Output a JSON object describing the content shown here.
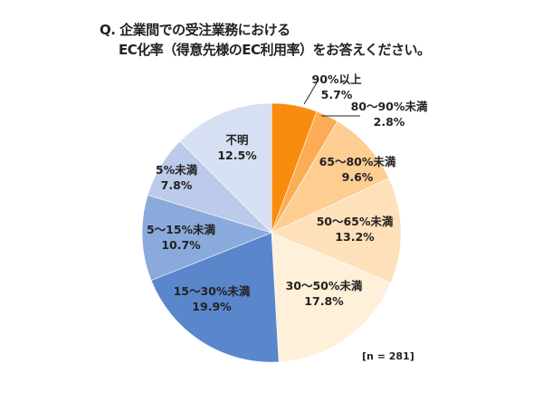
{
  "chart_data": {
    "type": "pie",
    "title_line1": "Q. 企業間での受注業務における",
    "title_line2": "EC化率（得意先様のEC利用率）をお答えください。",
    "note": "[n = 281]",
    "slices": [
      {
        "label": "90%以上",
        "value": 5.7,
        "value_label": "5.7%",
        "color": "#f98c0f"
      },
      {
        "label": "80～90%未満",
        "value": 2.8,
        "value_label": "2.8%",
        "color": "#fbac55"
      },
      {
        "label": "65～80%未満",
        "value": 9.6,
        "value_label": "9.6%",
        "color": "#fdcd92"
      },
      {
        "label": "50～65%未満",
        "value": 13.2,
        "value_label": "13.2%",
        "color": "#fee0ba"
      },
      {
        "label": "30～50%未満",
        "value": 17.8,
        "value_label": "17.8%",
        "color": "#fff0da"
      },
      {
        "label": "15～30%未満",
        "value": 19.9,
        "value_label": "19.9%",
        "color": "#5a86cc"
      },
      {
        "label": "5～15%未満",
        "value": 10.7,
        "value_label": "10.7%",
        "color": "#8aaadc"
      },
      {
        "label": "5%未満",
        "value": 7.8,
        "value_label": "7.8%",
        "color": "#bccbe9"
      },
      {
        "label": "不明",
        "value": 12.5,
        "value_label": "12.5%",
        "color": "#d6e0f2"
      }
    ]
  }
}
